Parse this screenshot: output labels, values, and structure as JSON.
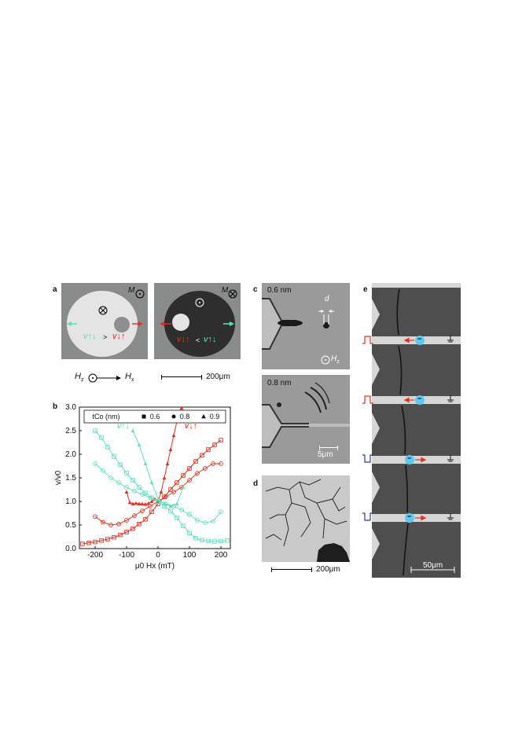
{
  "panel_labels": {
    "a": "a",
    "b": "b",
    "c": "c",
    "d": "d",
    "e": "e"
  },
  "panel_a": {
    "M_label": "M",
    "v_up_down": "v↑↓",
    "v_down_up": "v↓↑",
    "gt": ">",
    "lt": "<",
    "Hz": "H",
    "Hz_sub": "z",
    "Hx": "H",
    "Hx_sub": "x",
    "scale": "200μm",
    "colors": {
      "cyan": "#5fe0c0",
      "red": "#e0321e"
    }
  },
  "panel_c": {
    "thickness_top": "0.6 nm",
    "thickness_bottom": "0.8 nm",
    "d_label": "d",
    "Hz": "H",
    "Hz_sub": "z",
    "scale": "5μm"
  },
  "panel_d": {
    "scale": "200μm"
  },
  "panel_e": {
    "scale": "50μm",
    "charge": "−"
  },
  "chart_data": {
    "type": "line",
    "xlabel": "μ0 Hx (mT)",
    "ylabel": "v/v0",
    "xlim": [
      -250,
      230
    ],
    "ylim": [
      0,
      3.0
    ],
    "xticks": [
      "-200",
      "-100",
      "0",
      "100",
      "200"
    ],
    "yticks": [
      "0.0",
      "0.5",
      "1.0",
      "1.5",
      "2.0",
      "2.5",
      "3.0"
    ],
    "legend_title": "tCo (nm)",
    "legend_items": [
      "0.6",
      "0.8",
      "0.9"
    ],
    "annotations": {
      "up_down": "v↑↓",
      "down_up": "v↓↑"
    },
    "series": [
      {
        "color": "#e0321e",
        "marker": "square",
        "x": [
          -240,
          -220,
          -200,
          -180,
          -160,
          -140,
          -120,
          -100,
          -80,
          -60,
          -40,
          -20,
          0,
          20,
          40,
          60,
          80,
          100,
          120,
          140,
          160,
          180,
          200
        ],
        "y": [
          0.1,
          0.12,
          0.14,
          0.17,
          0.2,
          0.24,
          0.29,
          0.35,
          0.42,
          0.52,
          0.62,
          0.78,
          0.95,
          1.1,
          1.25,
          1.4,
          1.55,
          1.7,
          1.85,
          1.98,
          2.1,
          2.2,
          2.3
        ]
      },
      {
        "color": "#e0321e",
        "marker": "circle",
        "x": [
          -200,
          -175,
          -150,
          -125,
          -100,
          -75,
          -50,
          -25,
          0,
          25,
          50,
          75,
          100,
          125,
          150,
          175,
          200
        ],
        "y": [
          0.68,
          0.56,
          0.5,
          0.52,
          0.6,
          0.7,
          0.8,
          0.9,
          1.0,
          1.1,
          1.2,
          1.3,
          1.45,
          1.6,
          1.7,
          1.8,
          1.8
        ]
      },
      {
        "color": "#e0321e",
        "marker": "triangle",
        "x": [
          -100,
          -90,
          -80,
          -70,
          -60,
          -50,
          -40,
          -30,
          -20,
          -10,
          0,
          10,
          20,
          30,
          40,
          50,
          60,
          75
        ],
        "y": [
          1.2,
          0.98,
          0.95,
          0.96,
          0.95,
          0.95,
          0.94,
          0.96,
          1.0,
          1.05,
          1.0,
          1.2,
          1.5,
          1.8,
          2.1,
          2.4,
          2.7,
          2.98
        ]
      },
      {
        "color": "#5fe0c0",
        "marker": "square",
        "x": [
          -200,
          -180,
          -160,
          -140,
          -120,
          -100,
          -80,
          -60,
          -40,
          -20,
          0,
          20,
          40,
          60,
          80,
          100,
          120,
          140,
          160,
          180,
          200,
          220
        ],
        "y": [
          2.5,
          2.35,
          2.15,
          1.95,
          1.78,
          1.6,
          1.45,
          1.3,
          1.18,
          1.08,
          1.0,
          0.9,
          0.8,
          0.65,
          0.48,
          0.33,
          0.22,
          0.18,
          0.16,
          0.15,
          0.16,
          0.17
        ]
      },
      {
        "color": "#5fe0c0",
        "marker": "circle",
        "x": [
          -200,
          -175,
          -150,
          -125,
          -100,
          -75,
          -50,
          -25,
          0,
          25,
          50,
          75,
          100,
          125,
          150,
          175,
          200
        ],
        "y": [
          1.8,
          1.65,
          1.5,
          1.4,
          1.3,
          1.22,
          1.15,
          1.08,
          1.0,
          0.95,
          0.9,
          0.82,
          0.72,
          0.6,
          0.55,
          0.58,
          0.78
        ]
      },
      {
        "color": "#5fe0c0",
        "marker": "triangle",
        "x": [
          -80,
          -60,
          -40,
          -20,
          0,
          20,
          40,
          60,
          80
        ],
        "y": [
          2.5,
          2.2,
          1.8,
          1.4,
          1.05,
          0.95,
          0.9,
          0.95,
          1.3
        ]
      }
    ]
  }
}
